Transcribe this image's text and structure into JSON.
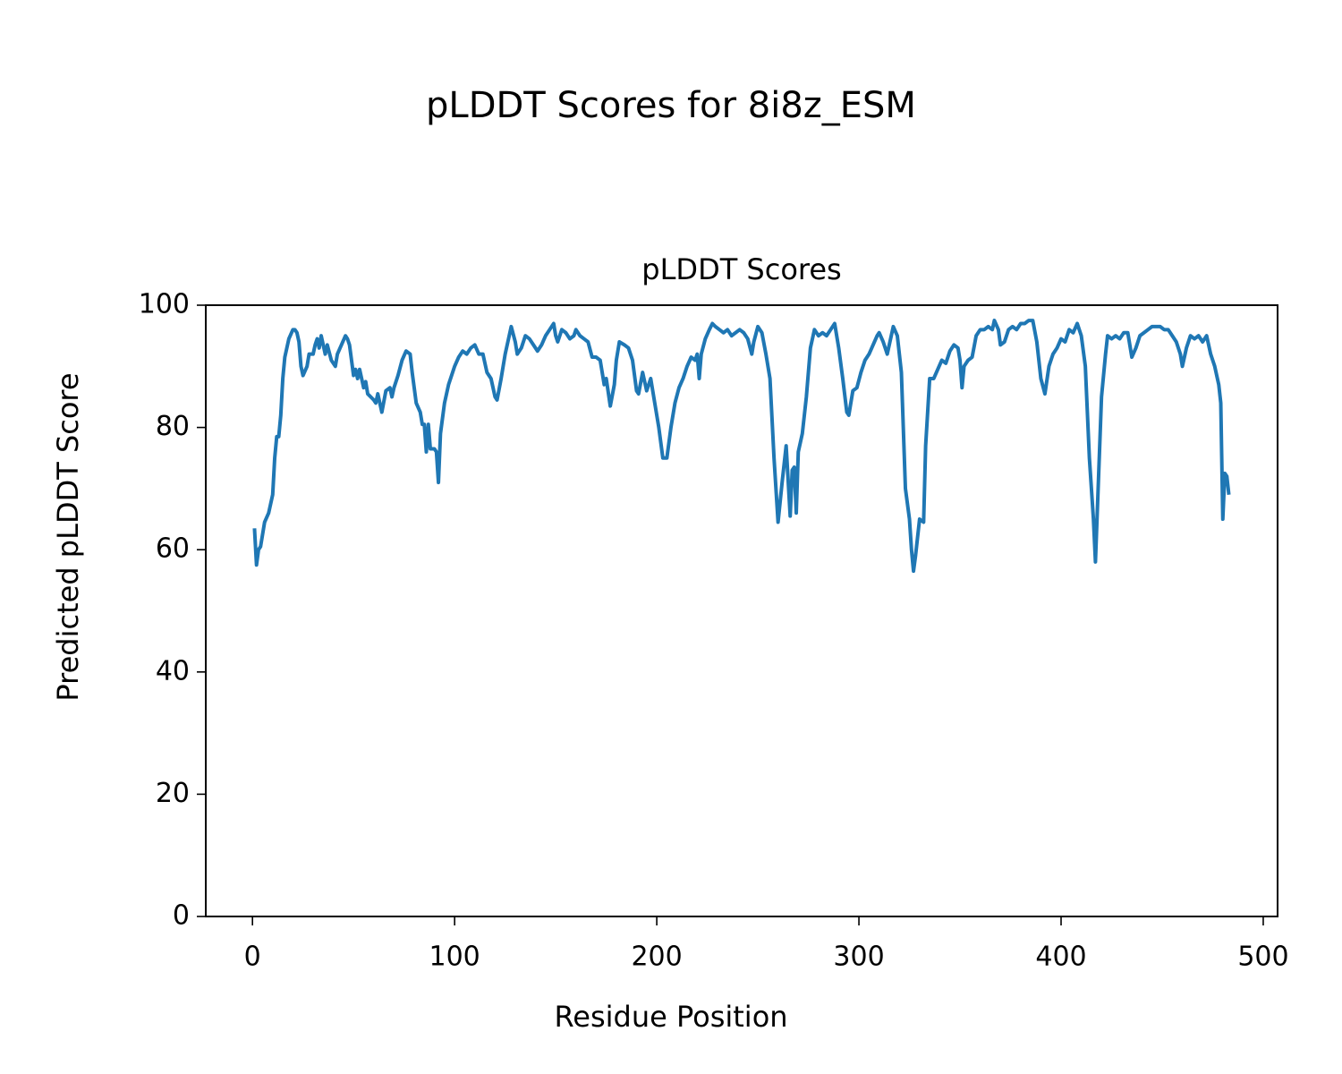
{
  "chart_data": {
    "type": "line",
    "suptitle": "pLDDT Scores for 8i8z_ESM",
    "title": "pLDDT Scores",
    "xlabel": "Residue Position",
    "ylabel": "Predicted pLDDT Score",
    "color": "#1f77b4",
    "xlim": [
      -23.1,
      507.1
    ],
    "xticks": [
      0,
      100,
      200,
      300,
      400,
      500
    ],
    "ylim": [
      0,
      100
    ],
    "yticks": [
      0,
      20,
      40,
      60,
      80,
      100
    ],
    "x": [
      1,
      2,
      3,
      4,
      6,
      8,
      10,
      11,
      12,
      13,
      14,
      15,
      16,
      18,
      20,
      21,
      22,
      23,
      24,
      25,
      27,
      28,
      30,
      31,
      32,
      33,
      34,
      36,
      37,
      39,
      41,
      42,
      44,
      46,
      47,
      48,
      50,
      51,
      52,
      53,
      55,
      56,
      57,
      60,
      61,
      62,
      64,
      66,
      68,
      69,
      70,
      72,
      74,
      76,
      78,
      79,
      81,
      83,
      84,
      85,
      86,
      87,
      88,
      90,
      91,
      92,
      93,
      95,
      97,
      99,
      100,
      102,
      104,
      106,
      108,
      110,
      112,
      114,
      116,
      118,
      120,
      121,
      123,
      125,
      127,
      128,
      130,
      131,
      133,
      135,
      137,
      139,
      141,
      143,
      145,
      147,
      149,
      150,
      151,
      153,
      155,
      157,
      159,
      160,
      162,
      164,
      166,
      168,
      170,
      172,
      174,
      175,
      177,
      179,
      180,
      181.5,
      184,
      186,
      188,
      190,
      191,
      193,
      195,
      197,
      199,
      201,
      203,
      205,
      207,
      209,
      211,
      213,
      215,
      217,
      219,
      220,
      221,
      222,
      224,
      226,
      227.5,
      229,
      231,
      233,
      235,
      237,
      239,
      241,
      243,
      245,
      247,
      248,
      250,
      252,
      254,
      256,
      258,
      260,
      262,
      264,
      266,
      267,
      268,
      269,
      270,
      272,
      274,
      276,
      278,
      280,
      282,
      284,
      286,
      288,
      290,
      292,
      294,
      295,
      297,
      299,
      301,
      303,
      305,
      307,
      309,
      310,
      312,
      314,
      316,
      317,
      319,
      321,
      323,
      325,
      326,
      327,
      328,
      330,
      332,
      333,
      335,
      337,
      339,
      341,
      343,
      345,
      347,
      349,
      350,
      351,
      352,
      354,
      356,
      358,
      360,
      362,
      364,
      366,
      367,
      369,
      370,
      372,
      374,
      376,
      378,
      380,
      382,
      384,
      386,
      388,
      390,
      392,
      394,
      396,
      398,
      400,
      402,
      404,
      406,
      408,
      410,
      412,
      414,
      416,
      417,
      418,
      420,
      422,
      423,
      425,
      427,
      429,
      431,
      433,
      435,
      437,
      439,
      441,
      443,
      445,
      447,
      449,
      451,
      453,
      455,
      457,
      459,
      460,
      462,
      464,
      466,
      468,
      470,
      472,
      474,
      476,
      478,
      479,
      480,
      481,
      482,
      483
    ],
    "values": [
      63.5,
      57.5,
      60,
      60.5,
      64.5,
      66,
      69,
      75,
      78.5,
      78.5,
      82,
      88,
      91.5,
      94.5,
      96,
      96,
      95.5,
      94,
      90,
      88.5,
      90,
      92,
      92,
      93.5,
      94.5,
      93,
      95,
      92,
      93.5,
      91,
      90,
      92,
      93.5,
      95,
      94.5,
      93.5,
      88.5,
      89.5,
      88,
      89.5,
      86.5,
      87.5,
      85.5,
      84.5,
      84,
      85.5,
      82.5,
      86,
      86.5,
      85,
      86.5,
      88.5,
      91,
      92.5,
      92,
      89,
      84,
      82.5,
      80.5,
      80.5,
      76,
      80.5,
      76.5,
      76.5,
      76,
      71,
      79,
      84,
      87,
      89,
      90,
      91.5,
      92.5,
      92,
      93,
      93.5,
      92,
      92,
      89,
      88,
      85,
      84.5,
      88,
      92,
      95,
      96.5,
      94,
      92,
      93,
      95,
      94.5,
      93.5,
      92.5,
      93.5,
      95,
      96,
      97,
      95,
      94,
      96,
      95.5,
      94.5,
      95,
      96,
      95,
      94.5,
      94,
      91.5,
      91.5,
      91,
      87,
      88,
      83.5,
      87,
      91,
      94,
      93.5,
      93,
      91,
      86,
      85.5,
      89,
      86,
      88,
      84,
      80,
      75,
      75,
      80,
      84,
      86.5,
      88,
      90,
      91.5,
      91,
      92,
      88,
      92,
      94.5,
      96,
      97,
      96.5,
      96,
      95.5,
      96,
      95,
      95.5,
      96,
      95.5,
      94.5,
      92,
      94,
      96.5,
      95.5,
      92,
      88,
      75,
      64.5,
      71,
      77,
      65.5,
      73,
      73.5,
      66,
      76,
      79,
      85,
      93,
      96,
      95,
      95.5,
      95,
      96,
      97,
      93,
      88,
      82.5,
      82,
      86,
      86.5,
      89,
      91,
      92,
      93.5,
      95,
      95.5,
      94,
      92,
      95,
      96.5,
      95,
      89,
      70,
      65,
      60,
      56.5,
      59,
      65,
      64.5,
      77,
      88,
      88,
      89.5,
      91,
      90.5,
      92.5,
      93.5,
      93,
      91,
      86.5,
      90,
      91,
      91.5,
      95,
      96,
      96,
      96.5,
      96,
      97.5,
      96,
      93.5,
      94,
      96,
      96.5,
      96,
      97,
      97,
      97.5,
      97.5,
      94,
      88,
      85.5,
      90,
      92,
      93,
      94.5,
      94,
      96,
      95.5,
      97,
      95,
      90,
      75,
      65,
      58,
      67,
      85,
      92,
      95,
      94.5,
      95,
      94.5,
      95.5,
      95.5,
      91.5,
      93,
      95,
      95.5,
      96,
      96.5,
      96.5,
      96.5,
      96,
      96,
      95,
      94,
      92,
      90,
      93,
      95,
      94.5,
      95,
      94,
      95,
      92,
      90,
      87,
      84,
      65,
      72.5,
      72,
      69
    ]
  }
}
